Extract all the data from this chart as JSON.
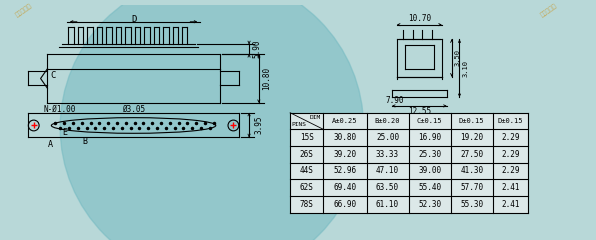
{
  "bg_color": "#b8d8d8",
  "table_header_row1": [
    "PINS",
    "DIM",
    "A±0.25",
    "B±0.20",
    "C±0.15",
    "D±0.15",
    "D±0.15"
  ],
  "table_col_widths": [
    28,
    0,
    42,
    42,
    42,
    42,
    38
  ],
  "table_rows": [
    [
      "15S",
      "30.80",
      "25.00",
      "16.90",
      "19.20",
      "2.29"
    ],
    [
      "26S",
      "39.20",
      "33.33",
      "25.30",
      "27.50",
      "2.29"
    ],
    [
      "44S",
      "52.96",
      "47.10",
      "39.00",
      "41.30",
      "2.29"
    ],
    [
      "62S",
      "69.40",
      "63.50",
      "55.40",
      "57.70",
      "2.41"
    ],
    [
      "78S",
      "66.90",
      "61.10",
      "52.30",
      "55.30",
      "2.41"
    ]
  ],
  "dim_5_90": "5.90",
  "dim_10_80": "10.80",
  "dim_10_70": "10.70",
  "dim_7_90": "7.90",
  "dim_12_55": "12.55",
  "dim_3_50": "3.50",
  "dim_3_10": "3.10",
  "dim_n_phi": "N-Ø1.00",
  "dim_phi305": "Ø3.05",
  "dim_3_95": "3.95",
  "label_D": "D",
  "label_C": "C",
  "label_B": "B",
  "label_A": "A",
  "label_E": "E",
  "line_color": "#000000",
  "table_bg": "#dce8e8",
  "text_color": "#000000",
  "watermark_color": "#cc8800",
  "circle_color": "#70b8c0"
}
